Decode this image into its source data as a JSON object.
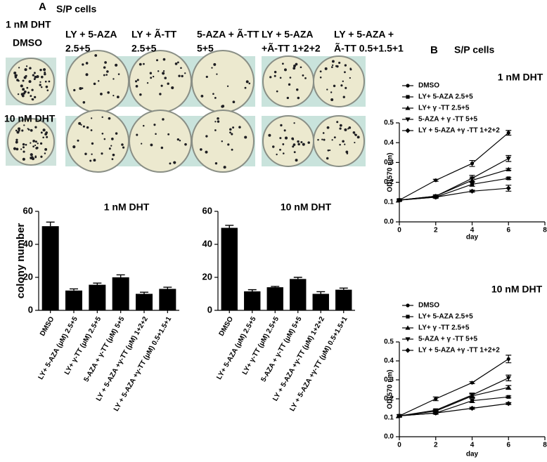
{
  "panel_a": {
    "letter": "A",
    "cells": "S/P cells",
    "row1": "1 nM DHT",
    "dmso": "DMSO",
    "row2": "10 nM DHT",
    "columns": [
      {
        "line1": "LY + 5-AZA",
        "line2": "2.5+5"
      },
      {
        "line1": "LY + Ã-TT",
        "line2": "2.5+5"
      },
      {
        "line1": "5-AZA + Ã-TT",
        "line2": "5+5"
      },
      {
        "line1": "LY + 5-AZA",
        "line2": "+Ã-TT 1+2+2"
      },
      {
        "line1": "LY + 5-AZA +",
        "line2": "Ã-TT 0.5+1.5+1"
      }
    ]
  },
  "panel_b": {
    "letter": "B",
    "cells": "S/P cells"
  },
  "chart_data": [
    {
      "type": "bar",
      "title": "1 nM DHT",
      "y_label": "colony number",
      "color": "#000000",
      "categories": [
        "DMSO",
        "LY+ 5-AZA (μM) 2.5+5",
        "LY+ γ-TT (μM) 2.5+5",
        "5-AZA + γ-TT (μM) 5+5",
        "LY + 5-AZA +γ-TT (μM) 1+2+2",
        "LY + 5-AZA +γ-TT (μM)  0.5+1.5+1"
      ],
      "values": [
        51,
        12,
        15.5,
        20,
        10,
        13
      ],
      "errors": [
        2.5,
        1,
        1,
        1.5,
        1,
        1
      ],
      "ylim": [
        0,
        60
      ],
      "yticks": [
        0,
        20,
        40,
        60
      ]
    },
    {
      "type": "bar",
      "title": "10 nM DHT",
      "color": "#000000",
      "categories": [
        "DMSO",
        "LY+ 5-AZA (μM) 2.5+5",
        "LY+ γ-TT (μM) 2.5+5",
        "5-AZA + γ-TT (μM) 5+5",
        "LY + 5-AZA +γ-TT (μM) 1+2+2",
        "LY + 5-AZA +γ-TT (μM) 0.5+1.5+1"
      ],
      "values": [
        50,
        11.5,
        14,
        19,
        10,
        12.5
      ],
      "errors": [
        1.5,
        1,
        0.5,
        1,
        1.3,
        1
      ],
      "ylim": [
        0,
        60
      ],
      "yticks": [
        0,
        20,
        40,
        60
      ]
    },
    {
      "type": "line",
      "title": "1 nM DHT",
      "x_label": "day",
      "y_label": "OD(570 nm)",
      "legend": "upper left",
      "x": [
        0,
        2,
        4,
        6
      ],
      "xlim": [
        0,
        8
      ],
      "xticks": [
        0,
        2,
        4,
        6,
        8
      ],
      "ylim": [
        0,
        0.5
      ],
      "yticks": [
        {
          "value": 0,
          "label": "0.0"
        },
        0.1,
        0.2,
        0.3,
        0.4,
        0.5
      ],
      "series": [
        {
          "name": "DMSO",
          "color": "#000000",
          "marker": "circle",
          "values": [
            0.11,
            0.21,
            0.295,
            0.45
          ],
          "errors": [
            0.005,
            0.005,
            0.015,
            0.012
          ]
        },
        {
          "name": "LY+ 5-AZA 2.5+5",
          "color": "#000000",
          "marker": "square",
          "values": [
            0.11,
            0.125,
            0.19,
            0.22
          ],
          "errors": [
            0.005,
            0.005,
            0.01,
            0.005
          ]
        },
        {
          "name": "LY+ γ -TT  2.5+5",
          "color": "#000000",
          "marker": "triangle-up",
          "values": [
            0.11,
            0.13,
            0.21,
            0.265
          ],
          "errors": [
            0.005,
            0.005,
            0.01,
            0.005
          ]
        },
        {
          "name": "5-AZA  + γ -TT  5+5",
          "color": "#000000",
          "marker": "triangle-down",
          "values": [
            0.11,
            0.13,
            0.22,
            0.32
          ],
          "errors": [
            0.005,
            0.005,
            0.015,
            0.015
          ]
        },
        {
          "name": "LY + 5-AZA +γ -TT  1+2+2",
          "color": "#000000",
          "marker": "diamond",
          "values": [
            0.11,
            0.125,
            0.155,
            0.17
          ],
          "errors": [
            0.005,
            0.005,
            0.005,
            0.015
          ]
        }
      ]
    },
    {
      "type": "line",
      "title": "10 nM DHT",
      "x_label": "day",
      "y_label": "OD(570 nm)",
      "legend": "upper left",
      "x": [
        0,
        2,
        4,
        6
      ],
      "xlim": [
        0,
        8
      ],
      "xticks": [
        0,
        2,
        4,
        6,
        8
      ],
      "ylim": [
        0,
        0.5
      ],
      "yticks": [
        {
          "value": 0,
          "label": "0.0"
        },
        0.1,
        0.2,
        0.3,
        0.4,
        0.5
      ],
      "series": [
        {
          "name": "DMSO",
          "color": "#000000",
          "marker": "circle",
          "values": [
            0.11,
            0.2,
            0.285,
            0.41
          ],
          "errors": [
            0.005,
            0.01,
            0.005,
            0.02
          ]
        },
        {
          "name": "LY+ 5-AZA 2.5+5",
          "color": "#000000",
          "marker": "square",
          "values": [
            0.11,
            0.125,
            0.19,
            0.21
          ],
          "errors": [
            0.005,
            0.005,
            0.01,
            0.005
          ]
        },
        {
          "name": "LY+ γ -TT  2.5+5",
          "color": "#000000",
          "marker": "triangle-up",
          "values": [
            0.11,
            0.135,
            0.215,
            0.26
          ],
          "errors": [
            0.005,
            0.005,
            0.01,
            0.01
          ]
        },
        {
          "name": "5-AZA  + γ -TT  5+5",
          "color": "#000000",
          "marker": "triangle-down",
          "values": [
            0.11,
            0.14,
            0.22,
            0.31
          ],
          "errors": [
            0.005,
            0.005,
            0.01,
            0.015
          ]
        },
        {
          "name": "LY + 5-AZA +γ -TT  1+2+2",
          "color": "#000000",
          "marker": "diamond",
          "values": [
            0.11,
            0.125,
            0.15,
            0.175
          ],
          "errors": [
            0.005,
            0.005,
            0.005,
            0.005
          ]
        }
      ]
    }
  ]
}
